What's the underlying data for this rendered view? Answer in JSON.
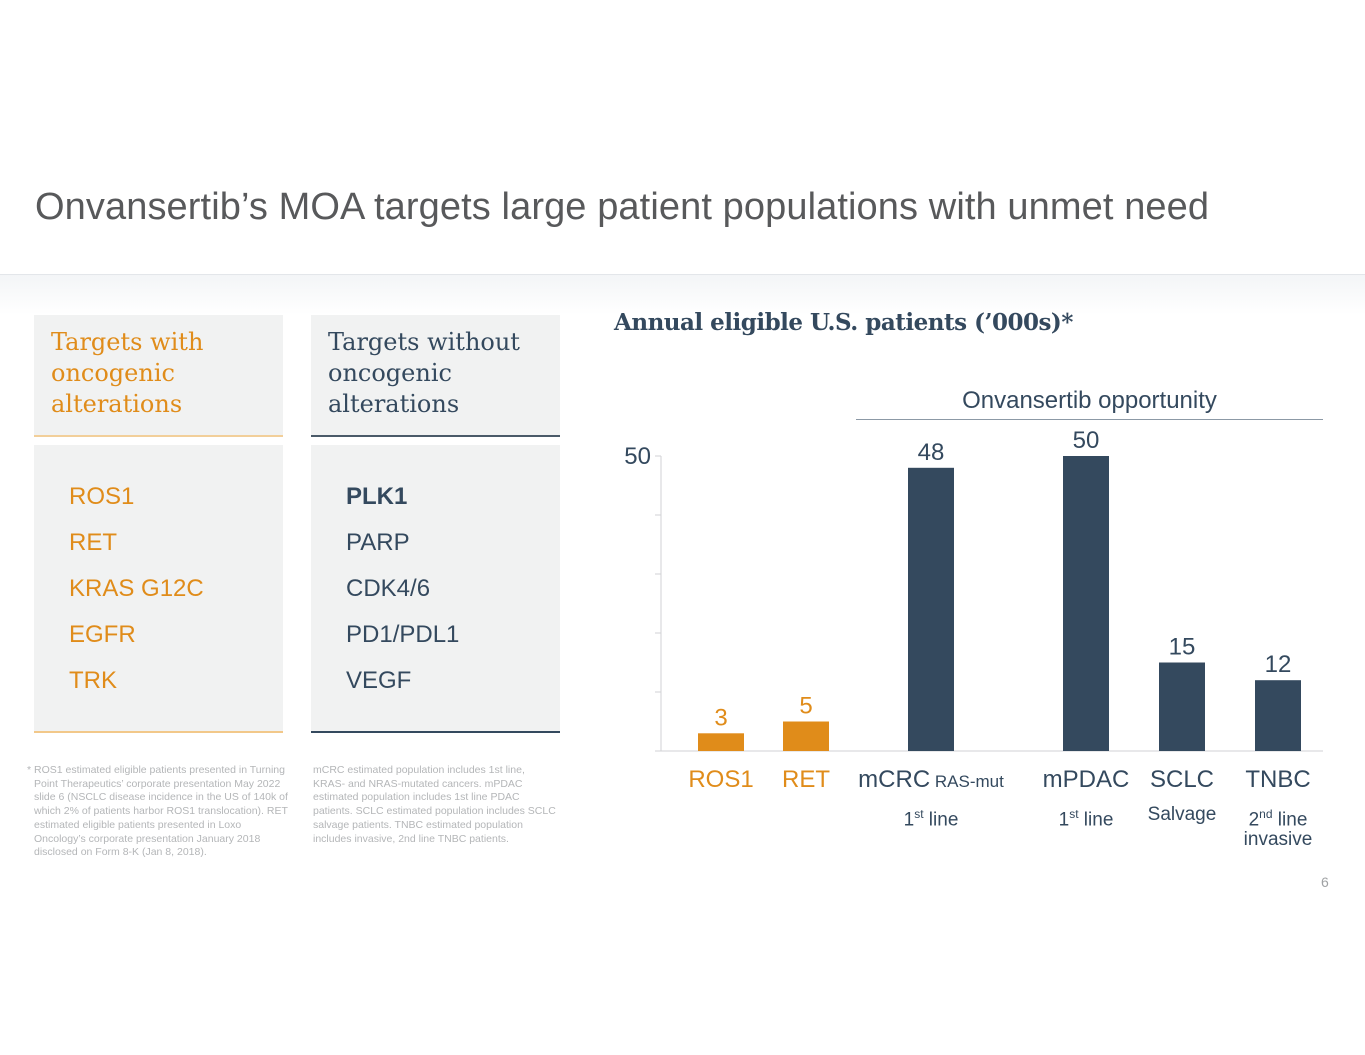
{
  "slide": {
    "title": "Onvansertib’s MOA targets large patient populations with unmet need",
    "page_number": "6"
  },
  "colors": {
    "orange": "#e08c1a",
    "navy": "#34495e",
    "panel": "#f1f2f2"
  },
  "columns": {
    "with": {
      "heading": [
        "Targets with",
        "oncogenic",
        "alterations"
      ],
      "targets": [
        "ROS1",
        "RET",
        "KRAS G12C",
        "EGFR",
        "TRK"
      ]
    },
    "without": {
      "heading": [
        "Targets without",
        "oncogenic",
        "alterations"
      ],
      "targets": [
        "PLK1",
        "PARP",
        "CDK4/6",
        "PD1/PDL1",
        "VEGF"
      ],
      "highlighted": "PLK1"
    }
  },
  "footnotes": {
    "left": {
      "marker": "*",
      "text": "ROS1 estimated eligible patients presented in Turning Point Therapeutics’ corporate presentation May 2022 slide 6 (NSCLC disease incidence in the US of 140k of which 2% of patients harbor ROS1 translocation).  RET estimated eligible patients presented in Loxo Oncology’s corporate presentation January 2018 disclosed on Form 8-K (Jan 8, 2018)."
    },
    "right": {
      "text": "mCRC estimated population includes 1st line, KRAS- and NRAS-mutated cancers. mPDAC estimated population includes 1st line PDAC patients. SCLC estimated population includes SCLC salvage patients. TNBC estimated population includes invasive, 2nd line TNBC patients."
    }
  },
  "chart_data": {
    "type": "bar",
    "title": "Annual eligible U.S. patients (’000s)*",
    "group_label": "Onvansertib opportunity",
    "group_categories": [
      "mCRC",
      "mPDAC",
      "SCLC",
      "TNBC"
    ],
    "categories": [
      "ROS1",
      "RET",
      "mCRC",
      "mPDAC",
      "SCLC",
      "TNBC"
    ],
    "category_suffix": [
      "",
      "",
      "RAS-mut",
      "",
      "",
      ""
    ],
    "category_sublabels": [
      [],
      [],
      [
        {
          "base": "1",
          "sup": "st",
          "rest": " line"
        }
      ],
      [
        {
          "base": "1",
          "sup": "st",
          "rest": " line"
        }
      ],
      [
        {
          "base": "Salvage",
          "sup": "",
          "rest": ""
        }
      ],
      [
        {
          "base": "2",
          "sup": "nd",
          "rest": " line"
        },
        {
          "base": "invasive",
          "sup": "",
          "rest": ""
        }
      ]
    ],
    "values": [
      3,
      5,
      48,
      50,
      15,
      12
    ],
    "data_labels": [
      "3",
      "5",
      "48",
      "50",
      "15",
      "12"
    ],
    "bar_colors": [
      "#e08c1a",
      "#e08c1a",
      "#34495e",
      "#34495e",
      "#34495e",
      "#34495e"
    ],
    "y_tick_labels": [
      "50"
    ],
    "ylim": [
      0,
      50
    ],
    "minor_ticks": [
      10,
      20,
      30,
      40
    ],
    "xlabel": "",
    "ylabel": "",
    "grid": false,
    "legend": "none"
  }
}
